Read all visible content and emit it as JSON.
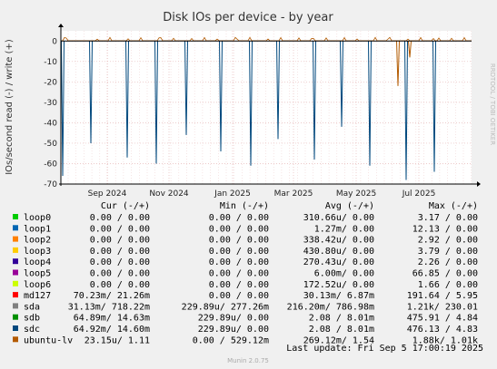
{
  "chart_data": {
    "type": "line",
    "title": "Disk IOs per device - by year",
    "ylabel": "IOs/second read (-) / write (+)",
    "side_label": "RRDTOOL / TOBI OETIKER",
    "xticks": [
      "Sep 2024",
      "Nov 2024",
      "Jan 2025",
      "Mar 2025",
      "May 2025",
      "Jul 2025"
    ],
    "yticks": [
      0,
      -10,
      -20,
      -30,
      -40,
      -50,
      -60,
      -70
    ],
    "ylim": [
      -70,
      5
    ],
    "read_spikes": [
      {
        "series": "sdc",
        "value": -66
      },
      {
        "series": "sdc",
        "value": -50
      },
      {
        "series": "sdc",
        "value": -57
      },
      {
        "series": "sdc",
        "value": -60
      },
      {
        "series": "sdc",
        "value": -46
      },
      {
        "series": "sdc",
        "value": -54
      },
      {
        "series": "sdc",
        "value": -61
      },
      {
        "series": "sdc",
        "value": -48
      },
      {
        "series": "sdc",
        "value": -58
      },
      {
        "series": "sdc",
        "value": -42
      },
      {
        "series": "sdc",
        "value": -61
      },
      {
        "series": "sdc",
        "value": -68
      },
      {
        "series": "sdc",
        "value": -64
      }
    ],
    "write_dips": [
      {
        "series": "ubuntu-lv",
        "value": -22
      },
      {
        "series": "ubuntu-lv",
        "value": -8
      }
    ],
    "legend_header": {
      "cur": "Cur (-/+)",
      "min": "Min (-/+)",
      "avg": "Avg (-/+)",
      "max": "Max (-/+)"
    },
    "series": [
      {
        "name": "loop0",
        "color": "#00cc00",
        "cur": "0.00 /   0.00",
        "min": "0.00 /   0.00",
        "avg": "310.66u/   0.00",
        "max": "3.17 /   0.00"
      },
      {
        "name": "loop1",
        "color": "#0066b3",
        "cur": "0.00 /   0.00",
        "min": "0.00 /   0.00",
        "avg": "1.27m/   0.00",
        "max": "12.13 /   0.00"
      },
      {
        "name": "loop2",
        "color": "#ff8000",
        "cur": "0.00 /   0.00",
        "min": "0.00 /   0.00",
        "avg": "338.42u/   0.00",
        "max": "2.92 /   0.00"
      },
      {
        "name": "loop3",
        "color": "#ffcc00",
        "cur": "0.00 /   0.00",
        "min": "0.00 /   0.00",
        "avg": "430.80u/   0.00",
        "max": "3.79 /   0.00"
      },
      {
        "name": "loop4",
        "color": "#330099",
        "cur": "0.00 /   0.00",
        "min": "0.00 /   0.00",
        "avg": "270.43u/   0.00",
        "max": "2.26 /   0.00"
      },
      {
        "name": "loop5",
        "color": "#990099",
        "cur": "0.00 /   0.00",
        "min": "0.00 /   0.00",
        "avg": "6.00m/   0.00",
        "max": "66.85 /   0.00"
      },
      {
        "name": "loop6",
        "color": "#ccff00",
        "cur": "0.00 /   0.00",
        "min": "0.00 /   0.00",
        "avg": "172.52u/   0.00",
        "max": "1.66 /   0.00"
      },
      {
        "name": "md127",
        "color": "#ff0000",
        "cur": "70.23m/  21.26m",
        "min": "0.00 /   0.00",
        "avg": "30.13m/   6.87m",
        "max": "191.64 /   5.95"
      },
      {
        "name": "sda",
        "color": "#808080",
        "cur": "31.13m/ 718.22m",
        "min": "229.89u/ 277.26m",
        "avg": "216.20m/ 786.98m",
        "max": "1.21k/ 230.01"
      },
      {
        "name": "sdb",
        "color": "#008f00",
        "cur": "64.89m/  14.63m",
        "min": "229.89u/   0.00",
        "avg": "2.08 /   8.01m",
        "max": "475.91 /   4.84"
      },
      {
        "name": "sdc",
        "color": "#00487d",
        "cur": "64.92m/  14.60m",
        "min": "229.89u/   0.00",
        "avg": "2.08 /   8.01m",
        "max": "476.13 /   4.83"
      },
      {
        "name": "ubuntu-lv",
        "color": "#b35a00",
        "cur": "23.15u/   1.11",
        "min": "0.00 / 529.12m",
        "avg": "269.12m/   1.54",
        "max": "1.88k/   1.01k"
      }
    ],
    "last_update": "Last update: Fri Sep  5 17:00:19 2025",
    "footer": "Munin 2.0.75"
  }
}
